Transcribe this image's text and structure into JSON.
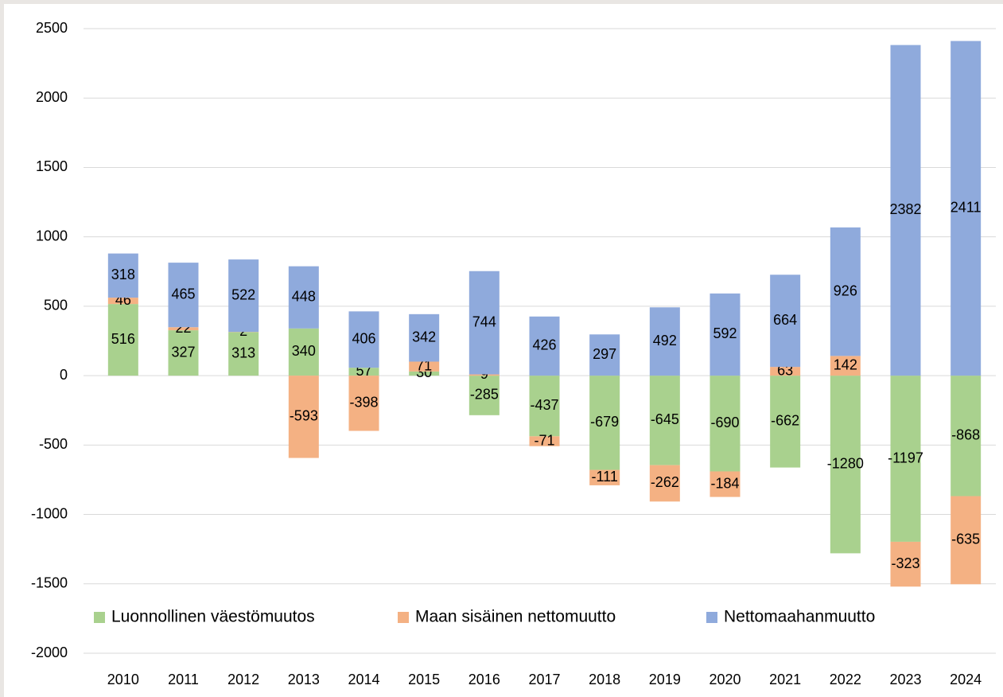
{
  "chart_data": {
    "type": "stacked_bar",
    "categories": [
      "2010",
      "2011",
      "2012",
      "2013",
      "2014",
      "2015",
      "2016",
      "2017",
      "2018",
      "2019",
      "2020",
      "2021",
      "2022",
      "2023",
      "2024"
    ],
    "series": [
      {
        "name": "Luonnollinen väestömuutos",
        "color": "#a9d18e",
        "values": [
          516,
          327,
          313,
          340,
          57,
          30,
          -285,
          -437,
          -679,
          -645,
          -690,
          -662,
          -1280,
          -1197,
          -868
        ]
      },
      {
        "name": "Maan sisäinen nettomuutto",
        "color": "#f4b183",
        "values": [
          46,
          22,
          2,
          -593,
          -398,
          71,
          9,
          -71,
          -111,
          -262,
          -184,
          63,
          142,
          -323,
          -635
        ]
      },
      {
        "name": "Nettomaahanmuutto",
        "color": "#8faadc",
        "values": [
          318,
          465,
          522,
          448,
          406,
          342,
          744,
          426,
          297,
          492,
          592,
          664,
          926,
          2382,
          2411
        ]
      }
    ],
    "ylim": [
      -2000,
      2500
    ],
    "yticks": [
      -2000,
      -1500,
      -1000,
      -500,
      0,
      500,
      1000,
      1500,
      2000,
      2500
    ],
    "grid": true,
    "legend": "bottom"
  }
}
